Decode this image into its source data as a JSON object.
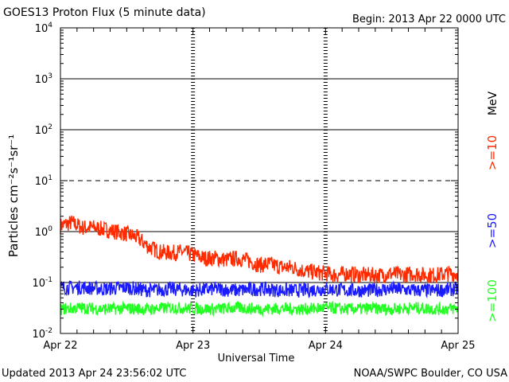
{
  "header": {
    "title": "GOES13 Proton Flux (5 minute data)",
    "begin": "Begin: 2013 Apr 22 0000 UTC"
  },
  "footer": {
    "updated": "Updated 2013 Apr 24 23:56:02 UTC",
    "source": "NOAA/SWPC Boulder, CO USA"
  },
  "chart_data": {
    "type": "line",
    "title": "GOES13 Proton Flux (5 minute data)",
    "xlabel": "Universal Time",
    "ylabel": "Particles cm⁻²s⁻¹sr⁻¹",
    "yscale": "log",
    "ylim": [
      0.01,
      10000
    ],
    "xlim": [
      0,
      72
    ],
    "x_unit": "hours since 2013 Apr 22 0000 UTC",
    "y_tick_labels": [
      {
        "base": "10",
        "exp": "4",
        "value": 10000
      },
      {
        "base": "10",
        "exp": "3",
        "value": 1000
      },
      {
        "base": "10",
        "exp": "2",
        "value": 100
      },
      {
        "base": "10",
        "exp": "1",
        "value": 10
      },
      {
        "base": "10",
        "exp": "0",
        "value": 1
      },
      {
        "base": "10",
        "exp": "-1",
        "value": 0.1
      },
      {
        "base": "10",
        "exp": "-2",
        "value": 0.01
      }
    ],
    "x_tick_labels": [
      {
        "label": "Apr 22",
        "value": 0
      },
      {
        "label": "Apr 23",
        "value": 24
      },
      {
        "label": "Apr 24",
        "value": 48
      },
      {
        "label": "Apr 25",
        "value": 72
      }
    ],
    "solid_gridlines": [
      1000,
      100,
      1,
      0.1
    ],
    "dashed_gridlines": [
      10,
      0.01
    ],
    "day_dividers": [
      24,
      48
    ],
    "legend_unit": "MeV",
    "legend_placement": "right",
    "series": [
      {
        "name": ">=10",
        "color": "#ff2a00",
        "x": [
          0,
          2,
          4,
          6,
          8,
          10,
          12,
          14,
          16,
          18,
          20,
          22,
          24,
          26,
          28,
          30,
          32,
          34,
          36,
          38,
          40,
          42,
          44,
          46,
          48,
          50,
          52,
          54,
          56,
          58,
          60,
          62,
          64,
          66,
          68,
          70,
          72
        ],
        "values": [
          1.3,
          1.5,
          1.2,
          1.2,
          1.1,
          1.0,
          0.9,
          0.75,
          0.5,
          0.4,
          0.38,
          0.4,
          0.35,
          0.3,
          0.3,
          0.28,
          0.3,
          0.27,
          0.22,
          0.23,
          0.2,
          0.2,
          0.17,
          0.16,
          0.15,
          0.14,
          0.15,
          0.14,
          0.14,
          0.14,
          0.15,
          0.14,
          0.15,
          0.14,
          0.14,
          0.15,
          0.15
        ]
      },
      {
        "name": ">=50",
        "color": "#1a1aff",
        "x": [
          0,
          4,
          8,
          12,
          16,
          20,
          24,
          28,
          32,
          36,
          40,
          44,
          48,
          52,
          56,
          60,
          64,
          68,
          72
        ],
        "values": [
          0.08,
          0.08,
          0.075,
          0.08,
          0.07,
          0.075,
          0.07,
          0.075,
          0.07,
          0.075,
          0.07,
          0.07,
          0.075,
          0.07,
          0.07,
          0.075,
          0.07,
          0.07,
          0.075
        ]
      },
      {
        "name": ">=100",
        "color": "#22ff22",
        "x": [
          0,
          4,
          8,
          12,
          16,
          20,
          24,
          28,
          32,
          36,
          40,
          44,
          48,
          52,
          56,
          60,
          64,
          68,
          72
        ],
        "values": [
          0.03,
          0.032,
          0.03,
          0.031,
          0.03,
          0.032,
          0.031,
          0.03,
          0.032,
          0.03,
          0.031,
          0.03,
          0.032,
          0.03,
          0.031,
          0.03,
          0.032,
          0.03,
          0.031
        ]
      }
    ]
  }
}
